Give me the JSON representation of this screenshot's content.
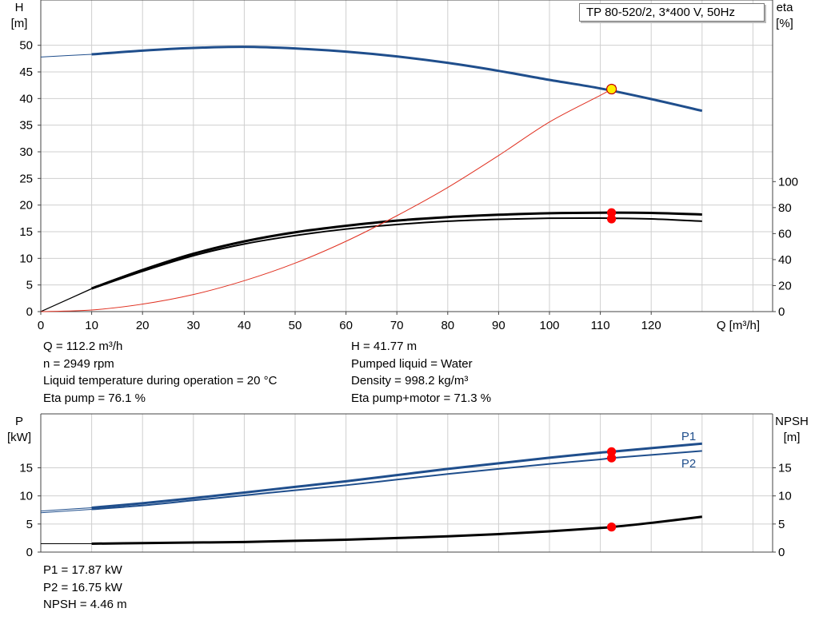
{
  "header": {
    "title": "TP 80-520/2, 3*400 V, 50Hz"
  },
  "chart_data": [
    {
      "type": "line",
      "axes": {
        "x": {
          "label": "Q [m³/h]",
          "ticks": [
            0,
            10,
            20,
            30,
            40,
            50,
            60,
            70,
            80,
            90,
            100,
            110,
            120
          ],
          "range": [
            0,
            140
          ]
        },
        "y_left": {
          "label_line1": "H",
          "label_line2": "[m]",
          "ticks": [
            0,
            5,
            10,
            15,
            20,
            25,
            30,
            35,
            40,
            45,
            50
          ],
          "range": [
            0,
            58.5
          ]
        },
        "y_right": {
          "label_line1": "eta",
          "label_line2": "[%]",
          "ticks": [
            0,
            20,
            40,
            60,
            80,
            100
          ],
          "range": [
            0,
            100
          ]
        }
      },
      "grid": true,
      "series": [
        {
          "role": "H",
          "axis": "left",
          "color": "#1f4e8c",
          "x": [
            0,
            10,
            20,
            30,
            40,
            50,
            60,
            70,
            80,
            90,
            100,
            110,
            120,
            130
          ],
          "y": [
            47.8,
            48.3,
            49.0,
            49.5,
            49.7,
            49.4,
            48.8,
            47.9,
            46.7,
            45.2,
            43.5,
            41.9,
            39.9,
            37.7
          ]
        },
        {
          "role": "eta-pump-motor",
          "axis": "right",
          "color": "#000000",
          "x": [
            0,
            10,
            20,
            30,
            40,
            50,
            60,
            70,
            80,
            90,
            100,
            110,
            120,
            130
          ],
          "y": [
            0,
            17.5,
            31,
            43,
            52,
            58.5,
            63.5,
            67,
            69.5,
            71,
            71.8,
            71.9,
            71.3,
            69.5
          ]
        },
        {
          "role": "eta-pump",
          "axis": "right",
          "color": "#000000",
          "x": [
            0,
            10,
            20,
            30,
            40,
            50,
            60,
            70,
            80,
            90,
            100,
            110,
            120,
            130
          ],
          "y": [
            0,
            17.8,
            32,
            44.5,
            54,
            61,
            66,
            70,
            72.7,
            74.5,
            75.7,
            76.1,
            75.9,
            74.7
          ]
        },
        {
          "role": "system-curve",
          "axis": "left",
          "color": "#e03020",
          "x": [
            0,
            10,
            20,
            30,
            40,
            50,
            60,
            70,
            80,
            90,
            100,
            110,
            112.2,
            113
          ],
          "y": [
            0,
            0.3,
            1.4,
            3.2,
            5.8,
            9.1,
            13.2,
            18,
            23.3,
            29.3,
            35.6,
            40.6,
            41.8,
            42.5
          ]
        }
      ],
      "operating_points": [
        {
          "x": 112.2,
          "y": 41.77,
          "axis": "left",
          "fill": "#ffee00",
          "stroke": "#c00000"
        },
        {
          "x": 112.2,
          "y": 76.1,
          "axis": "right",
          "fill": "#ff0000"
        },
        {
          "x": 112.2,
          "y": 71.3,
          "axis": "right",
          "fill": "#ff0000"
        }
      ],
      "info": {
        "col1": [
          "Q = 112.2 m³/h",
          "n = 2949 rpm",
          "Liquid temperature during operation = 20 °C",
          "Eta pump = 76.1 %"
        ],
        "col2": [
          "H = 41.77 m",
          "Pumped liquid = Water",
          "Density = 998.2 kg/m³",
          "Eta pump+motor = 71.3 %"
        ]
      }
    },
    {
      "type": "line",
      "axes": {
        "x": {
          "range": [
            0,
            140
          ]
        },
        "y_left": {
          "label_line1": "P",
          "label_line2": "[kW]",
          "ticks": [
            0,
            5,
            10,
            15
          ],
          "range": [
            0,
            24.6
          ]
        },
        "y_right": {
          "label_line1": "NPSH",
          "label_line2": "[m]",
          "ticks": [
            0,
            5,
            10,
            15
          ],
          "range": [
            0,
            24.6
          ]
        }
      },
      "grid": true,
      "series": [
        {
          "name": "P1",
          "axis": "left",
          "color": "#1f4e8c",
          "x": [
            0,
            10,
            20,
            30,
            40,
            50,
            60,
            70,
            80,
            90,
            100,
            110,
            112.2,
            120,
            130
          ],
          "y": [
            7.3,
            7.9,
            8.7,
            9.6,
            10.6,
            11.6,
            12.6,
            13.7,
            14.8,
            15.8,
            16.8,
            17.7,
            17.87,
            18.5,
            19.3
          ]
        },
        {
          "name": "P2",
          "axis": "left",
          "color": "#1f4e8c",
          "x": [
            0,
            10,
            20,
            30,
            40,
            50,
            60,
            70,
            80,
            90,
            100,
            110,
            112.2,
            120,
            130
          ],
          "y": [
            7.0,
            7.6,
            8.3,
            9.2,
            10.1,
            11.0,
            11.9,
            12.9,
            13.9,
            14.8,
            15.7,
            16.5,
            16.75,
            17.3,
            18.0
          ]
        },
        {
          "role": "NPSH",
          "axis": "right",
          "color": "#000000",
          "x": [
            0,
            10,
            20,
            30,
            40,
            50,
            60,
            70,
            80,
            90,
            100,
            110,
            112.2,
            120,
            130
          ],
          "y": [
            1.5,
            1.5,
            1.6,
            1.7,
            1.8,
            2.0,
            2.2,
            2.5,
            2.8,
            3.2,
            3.7,
            4.3,
            4.46,
            5.2,
            6.3
          ]
        }
      ],
      "operating_points": [
        {
          "x": 112.2,
          "y": 17.87,
          "axis": "left",
          "fill": "#ff0000"
        },
        {
          "x": 112.2,
          "y": 16.75,
          "axis": "left",
          "fill": "#ff0000"
        },
        {
          "x": 112.2,
          "y": 4.46,
          "axis": "right",
          "fill": "#ff0000"
        }
      ],
      "info": {
        "col1": [
          "P1 = 17.87 kW",
          "P2 = 16.75 kW",
          "NPSH = 4.46 m"
        ]
      }
    }
  ]
}
